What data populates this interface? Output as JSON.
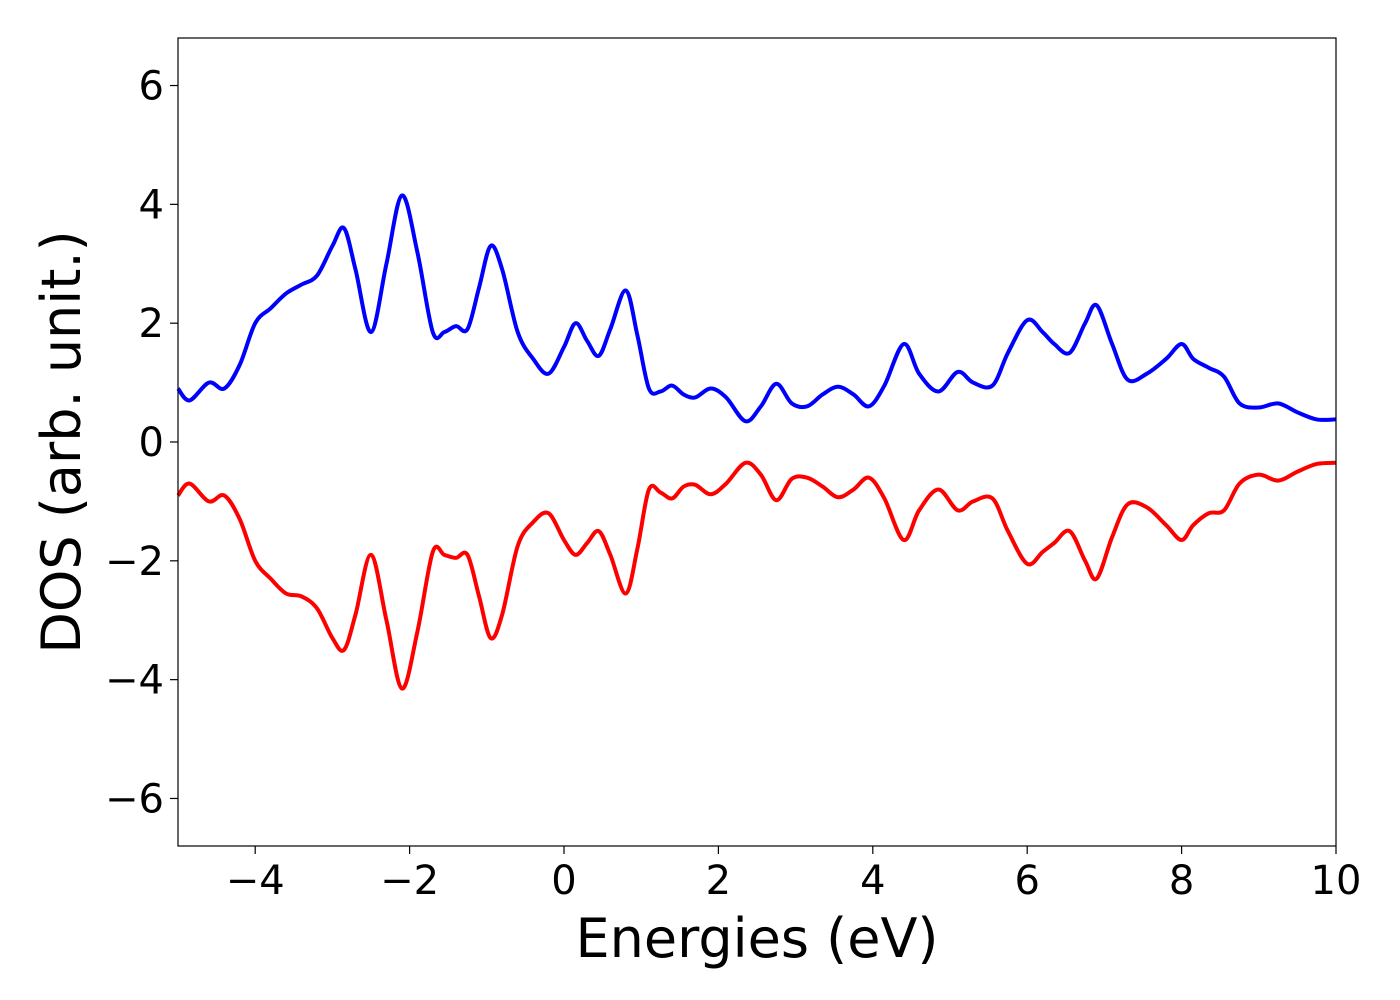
{
  "chart_data": {
    "type": "line",
    "title": "",
    "xlabel": "Energies (eV)",
    "ylabel": "DOS (arb. unit.)",
    "xlim": [
      -5,
      10
    ],
    "ylim": [
      -6.8,
      6.8
    ],
    "x_ticks": [
      -4,
      -2,
      0,
      2,
      4,
      6,
      8,
      10
    ],
    "x_tick_labels": [
      "−4",
      "−2",
      "0",
      "2",
      "4",
      "6",
      "8",
      "10"
    ],
    "y_ticks": [
      -6,
      -4,
      -2,
      0,
      2,
      4,
      6
    ],
    "y_tick_labels": [
      "−6",
      "−4",
      "−2",
      "0",
      "2",
      "4",
      "6"
    ],
    "grid": false,
    "legend": "none",
    "series": [
      {
        "color": "#0000ff",
        "x": [
          -5.0,
          -4.85,
          -4.6,
          -4.4,
          -4.2,
          -4.0,
          -3.8,
          -3.6,
          -3.4,
          -3.2,
          -3.0,
          -2.85,
          -2.7,
          -2.5,
          -2.3,
          -2.1,
          -1.9,
          -1.7,
          -1.55,
          -1.4,
          -1.25,
          -1.1,
          -0.95,
          -0.8,
          -0.6,
          -0.4,
          -0.2,
          0.0,
          0.15,
          0.3,
          0.45,
          0.6,
          0.8,
          0.95,
          1.1,
          1.25,
          1.4,
          1.55,
          1.7,
          1.9,
          2.1,
          2.35,
          2.55,
          2.75,
          2.95,
          3.15,
          3.35,
          3.55,
          3.75,
          3.95,
          4.15,
          4.4,
          4.6,
          4.85,
          5.1,
          5.3,
          5.55,
          5.75,
          6.0,
          6.2,
          6.35,
          6.55,
          6.75,
          6.9,
          7.1,
          7.3,
          7.55,
          7.8,
          8.0,
          8.15,
          8.35,
          8.55,
          8.75,
          9.0,
          9.25,
          9.5,
          9.75,
          10.0
        ],
        "values": [
          0.9,
          0.7,
          1.0,
          0.9,
          1.3,
          2.0,
          2.25,
          2.5,
          2.65,
          2.8,
          3.3,
          3.6,
          2.9,
          1.85,
          3.0,
          4.15,
          3.2,
          1.85,
          1.85,
          1.95,
          1.9,
          2.6,
          3.3,
          2.9,
          1.85,
          1.4,
          1.15,
          1.6,
          2.0,
          1.7,
          1.45,
          1.9,
          2.55,
          1.8,
          0.9,
          0.85,
          0.95,
          0.8,
          0.75,
          0.9,
          0.75,
          0.35,
          0.6,
          0.98,
          0.65,
          0.6,
          0.8,
          0.93,
          0.8,
          0.6,
          0.95,
          1.65,
          1.15,
          0.85,
          1.18,
          1.0,
          0.95,
          1.5,
          2.05,
          1.85,
          1.65,
          1.5,
          2.0,
          2.3,
          1.65,
          1.05,
          1.15,
          1.4,
          1.65,
          1.4,
          1.25,
          1.1,
          0.65,
          0.58,
          0.65,
          0.5,
          0.38,
          0.38
        ]
      },
      {
        "color": "#ff0000",
        "x": [
          -5.0,
          -4.85,
          -4.6,
          -4.4,
          -4.2,
          -4.0,
          -3.8,
          -3.6,
          -3.4,
          -3.2,
          -3.0,
          -2.85,
          -2.7,
          -2.5,
          -2.3,
          -2.1,
          -1.9,
          -1.7,
          -1.55,
          -1.4,
          -1.25,
          -1.1,
          -0.95,
          -0.8,
          -0.6,
          -0.4,
          -0.2,
          0.0,
          0.15,
          0.3,
          0.45,
          0.6,
          0.8,
          0.95,
          1.1,
          1.25,
          1.4,
          1.55,
          1.7,
          1.9,
          2.1,
          2.35,
          2.55,
          2.75,
          2.95,
          3.15,
          3.35,
          3.55,
          3.75,
          3.95,
          4.15,
          4.4,
          4.6,
          4.85,
          5.1,
          5.3,
          5.55,
          5.75,
          6.0,
          6.2,
          6.35,
          6.55,
          6.75,
          6.9,
          7.1,
          7.3,
          7.55,
          7.8,
          8.0,
          8.15,
          8.35,
          8.55,
          8.75,
          9.0,
          9.25,
          9.5,
          9.75,
          10.0
        ],
        "values": [
          -0.9,
          -0.7,
          -1.0,
          -0.9,
          -1.3,
          -2.0,
          -2.3,
          -2.55,
          -2.6,
          -2.8,
          -3.3,
          -3.5,
          -2.9,
          -1.9,
          -3.0,
          -4.15,
          -3.2,
          -1.85,
          -1.9,
          -1.95,
          -1.9,
          -2.6,
          -3.3,
          -2.9,
          -1.75,
          -1.35,
          -1.2,
          -1.65,
          -1.9,
          -1.7,
          -1.5,
          -1.9,
          -2.55,
          -1.8,
          -0.8,
          -0.85,
          -0.95,
          -0.75,
          -0.72,
          -0.88,
          -0.7,
          -0.35,
          -0.55,
          -0.98,
          -0.62,
          -0.6,
          -0.75,
          -0.93,
          -0.8,
          -0.6,
          -0.95,
          -1.65,
          -1.15,
          -0.8,
          -1.15,
          -1.0,
          -0.95,
          -1.5,
          -2.05,
          -1.85,
          -1.7,
          -1.5,
          -2.0,
          -2.3,
          -1.6,
          -1.05,
          -1.1,
          -1.4,
          -1.65,
          -1.4,
          -1.2,
          -1.15,
          -0.7,
          -0.55,
          -0.65,
          -0.5,
          -0.37,
          -0.35
        ]
      }
    ]
  }
}
